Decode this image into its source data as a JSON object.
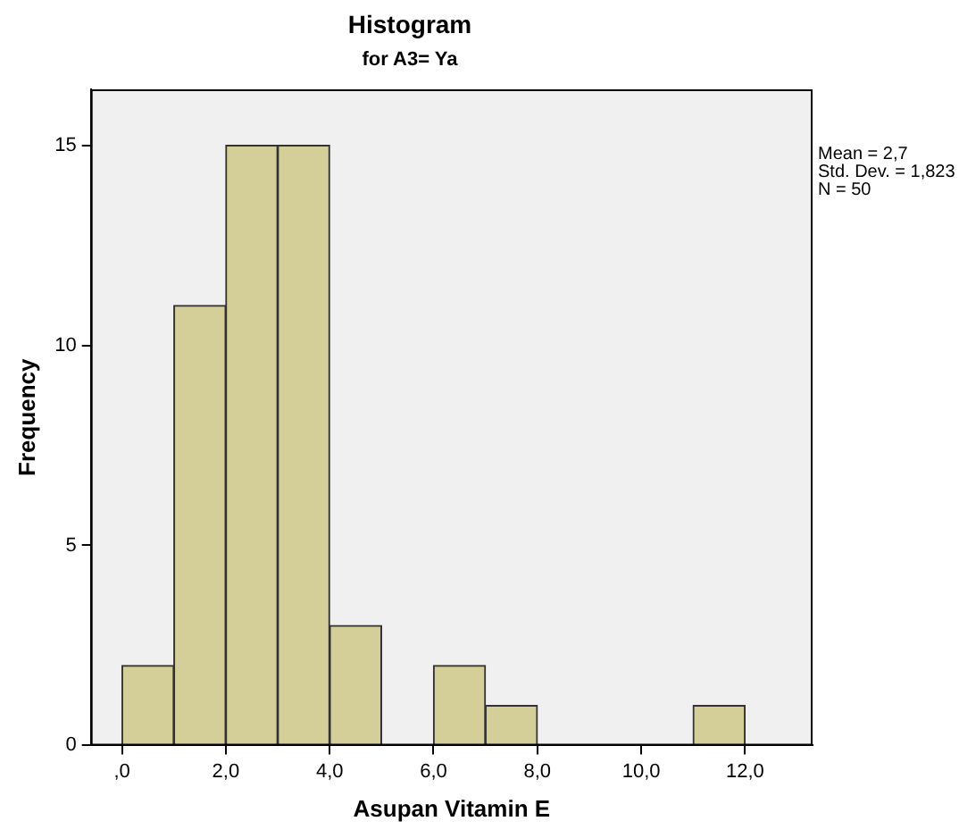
{
  "chart_data": {
    "type": "histogram",
    "title": "Histogram",
    "subtitle": "for A3= Ya",
    "xlabel": "Asupan Vitamin E",
    "ylabel": "Frequency",
    "bins": [
      0,
      1,
      2,
      3,
      4,
      5,
      6,
      7,
      8,
      9,
      10,
      11,
      12
    ],
    "values": [
      2,
      11,
      15,
      15,
      3,
      0,
      2,
      1,
      0,
      0,
      0,
      1
    ],
    "color": "#d4cf98",
    "xlim": [
      -0.6,
      13.3
    ],
    "ylim": [
      0,
      16.4
    ],
    "xticks": [
      {
        "value": 0,
        "label": ",0"
      },
      {
        "value": 2,
        "label": "2,0"
      },
      {
        "value": 4,
        "label": "4,0"
      },
      {
        "value": 6,
        "label": "6,0"
      },
      {
        "value": 8,
        "label": "8,0"
      },
      {
        "value": 10,
        "label": "10,0"
      },
      {
        "value": 12,
        "label": "12,0"
      }
    ],
    "yticks": [
      0,
      5,
      10,
      15
    ],
    "grid": false,
    "legend": false,
    "annotations": [
      "Mean = 2,7",
      "Std. Dev. = 1,823",
      "N = 50"
    ]
  }
}
